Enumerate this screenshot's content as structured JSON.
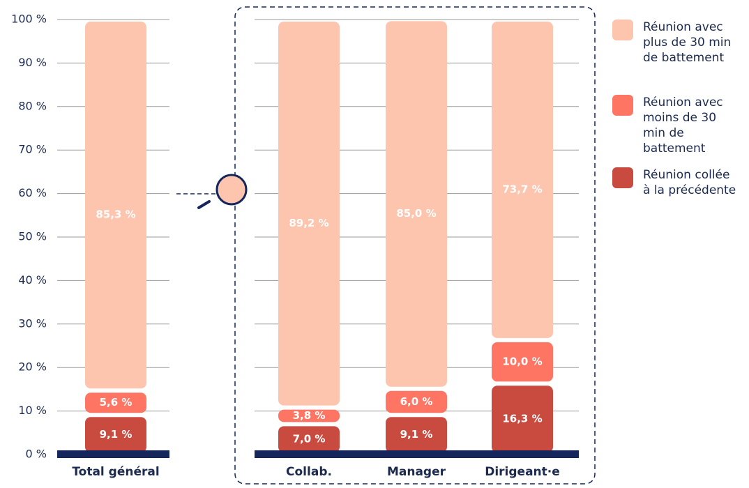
{
  "chart_data": {
    "type": "stacked_bar",
    "categories": [
      "Total général",
      "Collab.",
      "Manager",
      "Dirigeant·e"
    ],
    "series": [
      {
        "name": "Réunion collée à la précédente",
        "color": "#c94b40",
        "values": [
          9.1,
          7.0,
          9.1,
          16.3
        ],
        "value_labels": [
          "9,1 %",
          "7,0 %",
          "9,1 %",
          "16,3 %"
        ]
      },
      {
        "name": "Réunion avec moins de 30 min de battement",
        "color": "#ff7563",
        "values": [
          5.6,
          3.8,
          6.0,
          10.0
        ],
        "value_labels": [
          "5,6 %",
          "3,8 %",
          "6,0 %",
          "10,0 %"
        ]
      },
      {
        "name": "Réunion avec plus de 30 min de battement",
        "color": "#fdc4ae",
        "values": [
          85.3,
          89.2,
          85.0,
          73.7
        ],
        "value_labels": [
          "85,3 %",
          "89,2 %",
          "85,0 %",
          "73,7 %"
        ]
      }
    ],
    "ylim": [
      0,
      100
    ],
    "yticks": [
      {
        "value": 0,
        "label": "0 %"
      },
      {
        "value": 10,
        "label": "10 %"
      },
      {
        "value": 20,
        "label": "20 %"
      },
      {
        "value": 30,
        "label": "30 %"
      },
      {
        "value": 40,
        "label": "40 %"
      },
      {
        "value": 50,
        "label": "50 %"
      },
      {
        "value": 60,
        "label": "60 %"
      },
      {
        "value": 70,
        "label": "70 %"
      },
      {
        "value": 80,
        "label": "80 %"
      },
      {
        "value": 90,
        "label": "90 %"
      },
      {
        "value": 100,
        "label": "100 %"
      }
    ],
    "grid": true
  }
}
